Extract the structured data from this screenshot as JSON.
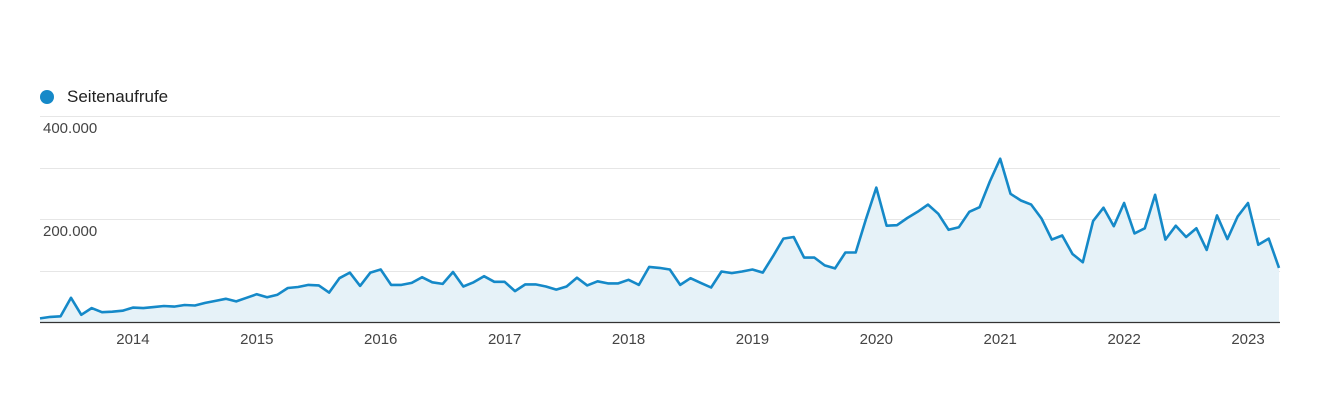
{
  "legend": {
    "label": "Seitenaufrufe",
    "color": "#1589c8"
  },
  "chart_data": {
    "type": "area",
    "series": [
      {
        "name": "Seitenaufrufe",
        "color": "#1589c8",
        "fill": "#e6f2f8",
        "points": [
          [
            "2013-04",
            7000
          ],
          [
            "2013-05",
            10000
          ],
          [
            "2013-06",
            11000
          ],
          [
            "2013-07",
            47000
          ],
          [
            "2013-08",
            14000
          ],
          [
            "2013-09",
            27000
          ],
          [
            "2013-10",
            19000
          ],
          [
            "2013-11",
            20000
          ],
          [
            "2013-12",
            22000
          ],
          [
            "2014-01",
            28000
          ],
          [
            "2014-02",
            27000
          ],
          [
            "2014-03",
            29000
          ],
          [
            "2014-04",
            31000
          ],
          [
            "2014-05",
            30000
          ],
          [
            "2014-06",
            33000
          ],
          [
            "2014-07",
            32000
          ],
          [
            "2014-08",
            37000
          ],
          [
            "2014-09",
            41000
          ],
          [
            "2014-10",
            45000
          ],
          [
            "2014-11",
            40000
          ],
          [
            "2014-12",
            47000
          ],
          [
            "2015-01",
            54000
          ],
          [
            "2015-02",
            48000
          ],
          [
            "2015-03",
            53000
          ],
          [
            "2015-04",
            66000
          ],
          [
            "2015-05",
            68000
          ],
          [
            "2015-06",
            72000
          ],
          [
            "2015-07",
            71000
          ],
          [
            "2015-08",
            57000
          ],
          [
            "2015-09",
            85000
          ],
          [
            "2015-10",
            96000
          ],
          [
            "2015-11",
            70000
          ],
          [
            "2015-12",
            96000
          ],
          [
            "2016-01",
            102000
          ],
          [
            "2016-02",
            72000
          ],
          [
            "2016-03",
            72000
          ],
          [
            "2016-04",
            76000
          ],
          [
            "2016-05",
            87000
          ],
          [
            "2016-06",
            77000
          ],
          [
            "2016-07",
            74000
          ],
          [
            "2016-08",
            97000
          ],
          [
            "2016-09",
            69000
          ],
          [
            "2016-10",
            77000
          ],
          [
            "2016-11",
            89000
          ],
          [
            "2016-12",
            78000
          ],
          [
            "2017-01",
            78000
          ],
          [
            "2017-02",
            60000
          ],
          [
            "2017-03",
            73000
          ],
          [
            "2017-04",
            73000
          ],
          [
            "2017-05",
            69000
          ],
          [
            "2017-06",
            63000
          ],
          [
            "2017-07",
            69000
          ],
          [
            "2017-08",
            86000
          ],
          [
            "2017-09",
            71000
          ],
          [
            "2017-10",
            79000
          ],
          [
            "2017-11",
            75000
          ],
          [
            "2017-12",
            75000
          ],
          [
            "2018-01",
            82000
          ],
          [
            "2018-02",
            72000
          ],
          [
            "2018-03",
            107000
          ],
          [
            "2018-04",
            105000
          ],
          [
            "2018-05",
            102000
          ],
          [
            "2018-06",
            72000
          ],
          [
            "2018-07",
            85000
          ],
          [
            "2018-08",
            76000
          ],
          [
            "2018-09",
            67000
          ],
          [
            "2018-10",
            98000
          ],
          [
            "2018-11",
            95000
          ],
          [
            "2018-12",
            98000
          ],
          [
            "2019-01",
            102000
          ],
          [
            "2019-02",
            96000
          ],
          [
            "2019-03",
            128000
          ],
          [
            "2019-04",
            162000
          ],
          [
            "2019-05",
            165000
          ],
          [
            "2019-06",
            125000
          ],
          [
            "2019-07",
            125000
          ],
          [
            "2019-08",
            110000
          ],
          [
            "2019-09",
            104000
          ],
          [
            "2019-10",
            135000
          ],
          [
            "2019-11",
            135000
          ],
          [
            "2019-12",
            200000
          ],
          [
            "2020-01",
            261000
          ],
          [
            "2020-02",
            187000
          ],
          [
            "2020-03",
            188000
          ],
          [
            "2020-04",
            202000
          ],
          [
            "2020-05",
            214000
          ],
          [
            "2020-06",
            228000
          ],
          [
            "2020-07",
            210000
          ],
          [
            "2020-08",
            179000
          ],
          [
            "2020-09",
            184000
          ],
          [
            "2020-10",
            214000
          ],
          [
            "2020-11",
            223000
          ],
          [
            "2020-12",
            273000
          ],
          [
            "2021-01",
            317000
          ],
          [
            "2021-02",
            249000
          ],
          [
            "2021-03",
            236000
          ],
          [
            "2021-04",
            228000
          ],
          [
            "2021-05",
            201000
          ],
          [
            "2021-06",
            160000
          ],
          [
            "2021-07",
            168000
          ],
          [
            "2021-08",
            132000
          ],
          [
            "2021-09",
            116000
          ],
          [
            "2021-10",
            196000
          ],
          [
            "2021-11",
            222000
          ],
          [
            "2021-12",
            186000
          ],
          [
            "2022-01",
            231000
          ],
          [
            "2022-02",
            172000
          ],
          [
            "2022-03",
            182000
          ],
          [
            "2022-04",
            247000
          ],
          [
            "2022-05",
            160000
          ],
          [
            "2022-06",
            187000
          ],
          [
            "2022-07",
            165000
          ],
          [
            "2022-08",
            182000
          ],
          [
            "2022-09",
            140000
          ],
          [
            "2022-10",
            207000
          ],
          [
            "2022-11",
            161000
          ],
          [
            "2022-12",
            205000
          ],
          [
            "2023-01",
            231000
          ],
          [
            "2023-02",
            150000
          ],
          [
            "2023-03",
            162000
          ],
          [
            "2023-04",
            105000
          ]
        ]
      }
    ],
    "x_domain": [
      "2013-04",
      "2023-04"
    ],
    "ylim": [
      0,
      400000
    ],
    "y_ticks": [
      {
        "value": 400000,
        "label": "400.000"
      },
      {
        "value": 200000,
        "label": "200.000"
      }
    ],
    "x_ticks": [
      {
        "value": "2014-01",
        "label": "2014"
      },
      {
        "value": "2015-01",
        "label": "2015"
      },
      {
        "value": "2016-01",
        "label": "2016"
      },
      {
        "value": "2017-01",
        "label": "2017"
      },
      {
        "value": "2018-01",
        "label": "2018"
      },
      {
        "value": "2019-01",
        "label": "2019"
      },
      {
        "value": "2020-01",
        "label": "2020"
      },
      {
        "value": "2021-01",
        "label": "2021"
      },
      {
        "value": "2022-01",
        "label": "2022"
      },
      {
        "value": "2023-01",
        "label": "2023"
      }
    ],
    "gridlines": [
      100000,
      200000,
      300000,
      400000
    ],
    "grid": true,
    "legend_position": "top-left"
  }
}
